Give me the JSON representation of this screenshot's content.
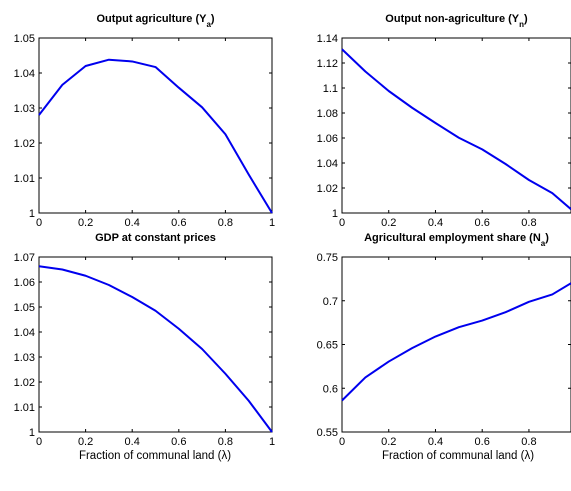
{
  "chart_data": [
    {
      "type": "line",
      "title": "Output agriculture (Y",
      "title_sub": "a",
      "title_end": ")",
      "xlabel": "",
      "ylabel": "",
      "xlim": [
        0,
        1
      ],
      "ylim": [
        1,
        1.05
      ],
      "xticks": [
        0,
        0.2,
        0.4,
        0.6,
        0.8,
        1
      ],
      "xtick_labels": [
        "0",
        "0.2",
        "0.4",
        "0.6",
        "0.8",
        "1"
      ],
      "yticks": [
        1,
        1.01,
        1.02,
        1.03,
        1.04,
        1.05
      ],
      "ytick_labels": [
        "1",
        "1.01",
        "1.02",
        "1.03",
        "1.04",
        "1.05"
      ],
      "grid": false,
      "series": [
        {
          "color": "#0000ee",
          "x": [
            0,
            0.1,
            0.2,
            0.3,
            0.4,
            0.5,
            0.6,
            0.7,
            0.8,
            0.9,
            1.0
          ],
          "y": [
            1.028,
            1.0366,
            1.042,
            1.0438,
            1.0433,
            1.0417,
            1.0358,
            1.0302,
            1.0225,
            1.011,
            1.0
          ]
        }
      ]
    },
    {
      "type": "line",
      "title": "Output non-agriculture (Y",
      "title_sub": "n",
      "title_end": ")",
      "xlabel": "",
      "ylabel": "",
      "xlim": [
        0,
        0.98
      ],
      "ylim": [
        1,
        1.14
      ],
      "xticks": [
        0,
        0.2,
        0.4,
        0.6,
        0.8
      ],
      "xtick_labels": [
        "0",
        "0.2",
        "0.4",
        "0.6",
        "0.8"
      ],
      "yticks": [
        1,
        1.02,
        1.04,
        1.06,
        1.08,
        1.1,
        1.12,
        1.14
      ],
      "ytick_labels": [
        "1",
        "1.02",
        "1.04",
        "1.06",
        "1.08",
        "1.1",
        "1.12",
        "1.14"
      ],
      "grid": false,
      "series": [
        {
          "color": "#0000ee",
          "x": [
            0,
            0.1,
            0.2,
            0.3,
            0.4,
            0.5,
            0.6,
            0.7,
            0.8,
            0.9,
            0.98
          ],
          "y": [
            1.131,
            1.1132,
            1.0976,
            1.0842,
            1.072,
            1.0602,
            1.0509,
            1.0392,
            1.0264,
            1.0159,
            1.003
          ]
        }
      ]
    },
    {
      "type": "line",
      "title": "GDP at constant prices",
      "title_sub": "",
      "title_end": "",
      "xlabel": "Fraction of communal land (λ)",
      "ylabel": "",
      "xlim": [
        0,
        1
      ],
      "ylim": [
        1,
        1.07
      ],
      "xticks": [
        0,
        0.2,
        0.4,
        0.6,
        0.8,
        1
      ],
      "xtick_labels": [
        "0",
        "0.2",
        "0.4",
        "0.6",
        "0.8",
        "1"
      ],
      "yticks": [
        1,
        1.01,
        1.02,
        1.03,
        1.04,
        1.05,
        1.06,
        1.07
      ],
      "ytick_labels": [
        "1",
        "1.01",
        "1.02",
        "1.03",
        "1.04",
        "1.05",
        "1.06",
        "1.07"
      ],
      "grid": false,
      "series": [
        {
          "color": "#0000ee",
          "x": [
            0,
            0.1,
            0.2,
            0.3,
            0.4,
            0.5,
            0.6,
            0.7,
            0.8,
            0.9,
            1.0
          ],
          "y": [
            1.0663,
            1.065,
            1.0625,
            1.0588,
            1.054,
            1.0485,
            1.0413,
            1.0332,
            1.0233,
            1.0125,
            1.0
          ]
        }
      ]
    },
    {
      "type": "line",
      "title": "Agricultural employment share (N",
      "title_sub": "a",
      "title_end": ")",
      "xlabel": "Fraction of communal land (λ)",
      "ylabel": "",
      "xlim": [
        0,
        0.98
      ],
      "ylim": [
        0.55,
        0.75
      ],
      "xticks": [
        0,
        0.2,
        0.4,
        0.6,
        0.8
      ],
      "xtick_labels": [
        "0",
        "0.2",
        "0.4",
        "0.6",
        "0.8"
      ],
      "yticks": [
        0.55,
        0.6,
        0.65,
        0.7,
        0.75
      ],
      "ytick_labels": [
        "0.55",
        "0.6",
        "0.65",
        "0.7",
        "0.75"
      ],
      "grid": false,
      "series": [
        {
          "color": "#0000ee",
          "x": [
            0,
            0.1,
            0.2,
            0.3,
            0.4,
            0.5,
            0.6,
            0.7,
            0.8,
            0.9,
            0.98
          ],
          "y": [
            0.586,
            0.6124,
            0.6305,
            0.6459,
            0.6591,
            0.6698,
            0.6774,
            0.6869,
            0.6988,
            0.7072,
            0.72
          ]
        }
      ]
    }
  ]
}
